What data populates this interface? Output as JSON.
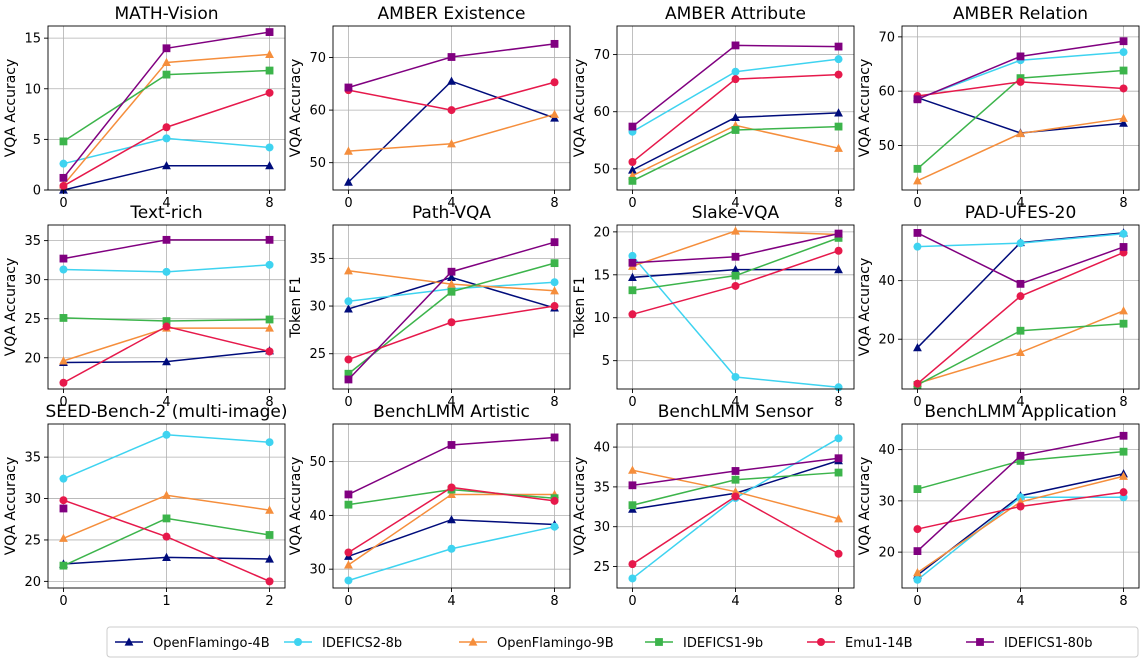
{
  "colors": {
    "OpenFlamingo-4B": "#000c7b",
    "IDEFICS2-8b": "#3ed3f0",
    "OpenFlamingo-9B": "#f58e3c",
    "IDEFICS1-9b": "#3cb44b",
    "Emu1-14B": "#e6194b",
    "IDEFICS1-80b": "#800080"
  },
  "legend": {
    "position": "bottom-center",
    "entries": [
      {
        "name": "OpenFlamingo-4B",
        "marker": "triangle"
      },
      {
        "name": "IDEFICS2-8b",
        "marker": "circle"
      },
      {
        "name": "OpenFlamingo-9B",
        "marker": "triangle"
      },
      {
        "name": "IDEFICS1-9b",
        "marker": "square"
      },
      {
        "name": "Emu1-14B",
        "marker": "circle"
      },
      {
        "name": "IDEFICS1-80b",
        "marker": "square"
      }
    ]
  },
  "chart_data": [
    {
      "type": "line",
      "title": "MATH-Vision",
      "ylabel": "VQA Accuracy",
      "x": [
        0,
        4,
        8
      ],
      "xticks": [
        "0",
        "4",
        "8"
      ],
      "ylim": [
        0,
        16.2
      ],
      "yticks": [
        0,
        5,
        10,
        15
      ],
      "grid": true,
      "series": [
        {
          "name": "OpenFlamingo-4B",
          "values": [
            0,
            2.4,
            2.4
          ]
        },
        {
          "name": "IDEFICS2-8b",
          "values": [
            2.6,
            5.1,
            4.2
          ]
        },
        {
          "name": "OpenFlamingo-9B",
          "values": [
            0.5,
            12.6,
            13.4
          ]
        },
        {
          "name": "IDEFICS1-9b",
          "values": [
            4.8,
            11.4,
            11.8
          ]
        },
        {
          "name": "Emu1-14B",
          "values": [
            0.4,
            6.2,
            9.6
          ]
        },
        {
          "name": "IDEFICS1-80b",
          "values": [
            1.2,
            14.0,
            15.6
          ]
        }
      ]
    },
    {
      "type": "line",
      "title": "AMBER Existence",
      "ylabel": "VQA Accuracy",
      "x": [
        0,
        4,
        8
      ],
      "xticks": [
        "0",
        "4",
        "8"
      ],
      "ylim": [
        44.8,
        76
      ],
      "yticks": [
        50,
        60,
        70
      ],
      "grid": true,
      "series": [
        {
          "name": "OpenFlamingo-4B",
          "values": [
            46.3,
            65.5,
            58.5
          ]
        },
        {
          "name": "OpenFlamingo-9B",
          "values": [
            52.2,
            53.6,
            59.2
          ]
        },
        {
          "name": "Emu1-14B",
          "values": [
            63.8,
            60.0,
            65.3
          ]
        },
        {
          "name": "IDEFICS1-80b",
          "values": [
            64.3,
            70.1,
            72.6
          ]
        }
      ]
    },
    {
      "type": "line",
      "title": "AMBER Attribute",
      "ylabel": "VQA Accuracy",
      "x": [
        0,
        4,
        8
      ],
      "xticks": [
        "0",
        "4",
        "8"
      ],
      "ylim": [
        46.3,
        75
      ],
      "yticks": [
        50,
        60,
        70
      ],
      "grid": true,
      "series": [
        {
          "name": "OpenFlamingo-4B",
          "values": [
            49.8,
            59.0,
            59.8
          ]
        },
        {
          "name": "IDEFICS2-8b",
          "values": [
            56.5,
            67.0,
            69.2
          ]
        },
        {
          "name": "OpenFlamingo-9B",
          "values": [
            48.8,
            57.6,
            53.6
          ]
        },
        {
          "name": "IDEFICS1-9b",
          "values": [
            47.9,
            56.8,
            57.4
          ]
        },
        {
          "name": "Emu1-14B",
          "values": [
            51.2,
            65.7,
            66.5
          ]
        },
        {
          "name": "IDEFICS1-80b",
          "values": [
            57.4,
            71.6,
            71.4
          ]
        }
      ]
    },
    {
      "type": "line",
      "title": "AMBER Relation",
      "ylabel": "VQA Accuracy",
      "x": [
        0,
        4,
        8
      ],
      "xticks": [
        "0",
        "4",
        "8"
      ],
      "ylim": [
        41.8,
        72
      ],
      "yticks": [
        50,
        60,
        70
      ],
      "grid": true,
      "series": [
        {
          "name": "OpenFlamingo-4B",
          "values": [
            58.8,
            52.3,
            54.1
          ]
        },
        {
          "name": "IDEFICS2-8b",
          "values": [
            58.6,
            65.7,
            67.2
          ]
        },
        {
          "name": "OpenFlamingo-9B",
          "values": [
            43.5,
            52.2,
            55.0
          ]
        },
        {
          "name": "IDEFICS1-9b",
          "values": [
            45.7,
            62.4,
            63.8
          ]
        },
        {
          "name": "Emu1-14B",
          "values": [
            59.1,
            61.7,
            60.5
          ]
        },
        {
          "name": "IDEFICS1-80b",
          "values": [
            58.5,
            66.4,
            69.2
          ]
        }
      ]
    },
    {
      "type": "line",
      "title": "Text-rich",
      "ylabel": "VQA Accuracy",
      "x": [
        0,
        4,
        8
      ],
      "xticks": [
        "0",
        "4",
        "8"
      ],
      "ylim": [
        16,
        37
      ],
      "yticks": [
        20,
        25,
        30,
        35
      ],
      "grid": true,
      "series": [
        {
          "name": "OpenFlamingo-4B",
          "values": [
            19.4,
            19.5,
            20.9
          ]
        },
        {
          "name": "IDEFICS2-8b",
          "values": [
            31.3,
            31.0,
            31.9
          ]
        },
        {
          "name": "OpenFlamingo-9B",
          "values": [
            19.6,
            23.8,
            23.8
          ]
        },
        {
          "name": "IDEFICS1-9b",
          "values": [
            25.1,
            24.7,
            24.9
          ]
        },
        {
          "name": "Emu1-14B",
          "values": [
            16.8,
            24.0,
            20.8
          ]
        },
        {
          "name": "IDEFICS1-80b",
          "values": [
            32.7,
            35.1,
            35.1
          ]
        }
      ]
    },
    {
      "type": "line",
      "title": "Path-VQA",
      "ylabel": "Token F1",
      "x": [
        0,
        4,
        8
      ],
      "xticks": [
        "0",
        "4",
        "8"
      ],
      "ylim": [
        21.3,
        38.5
      ],
      "yticks": [
        25,
        30,
        35
      ],
      "grid": true,
      "series": [
        {
          "name": "OpenFlamingo-4B",
          "values": [
            29.7,
            33.0,
            29.8
          ]
        },
        {
          "name": "IDEFICS2-8b",
          "values": [
            30.5,
            31.8,
            32.5
          ]
        },
        {
          "name": "OpenFlamingo-9B",
          "values": [
            33.7,
            32.3,
            31.6
          ]
        },
        {
          "name": "IDEFICS1-9b",
          "values": [
            22.9,
            31.5,
            34.5
          ]
        },
        {
          "name": "Emu1-14B",
          "values": [
            24.4,
            28.3,
            30.0
          ]
        },
        {
          "name": "IDEFICS1-80b",
          "values": [
            22.3,
            33.6,
            36.7
          ]
        }
      ]
    },
    {
      "type": "line",
      "title": "Slake-VQA",
      "ylabel": "Token F1",
      "x": [
        0,
        4,
        8
      ],
      "xticks": [
        "0",
        "4",
        "8"
      ],
      "ylim": [
        1.7,
        20.8
      ],
      "yticks": [
        5,
        10,
        15,
        20
      ],
      "grid": true,
      "series": [
        {
          "name": "OpenFlamingo-4B",
          "values": [
            14.7,
            15.6,
            15.6
          ]
        },
        {
          "name": "IDEFICS2-8b",
          "values": [
            17.2,
            3.1,
            1.9
          ]
        },
        {
          "name": "OpenFlamingo-9B",
          "values": [
            16.0,
            20.1,
            19.7
          ]
        },
        {
          "name": "IDEFICS1-9b",
          "values": [
            13.2,
            14.9,
            19.3
          ]
        },
        {
          "name": "Emu1-14B",
          "values": [
            10.4,
            13.7,
            17.8
          ]
        },
        {
          "name": "IDEFICS1-80b",
          "values": [
            16.4,
            17.1,
            19.8
          ]
        }
      ]
    },
    {
      "type": "line",
      "title": "PAD-UFES-20",
      "ylabel": "VQA Accuracy",
      "x": [
        0,
        4,
        8
      ],
      "xticks": [
        "0",
        "4",
        "8"
      ],
      "ylim": [
        3,
        59
      ],
      "yticks": [
        20,
        40
      ],
      "grid": true,
      "series": [
        {
          "name": "OpenFlamingo-4B",
          "values": [
            17.1,
            53.0,
            56.3
          ]
        },
        {
          "name": "IDEFICS2-8b",
          "values": [
            51.6,
            52.8,
            56.0
          ]
        },
        {
          "name": "OpenFlamingo-9B",
          "values": [
            4.9,
            15.5,
            29.7
          ]
        },
        {
          "name": "IDEFICS1-9b",
          "values": [
            4.4,
            22.9,
            25.3
          ]
        },
        {
          "name": "Emu1-14B",
          "values": [
            4.8,
            34.7,
            49.6
          ]
        },
        {
          "name": "IDEFICS1-80b",
          "values": [
            56.3,
            38.9,
            51.5
          ]
        }
      ]
    },
    {
      "type": "line",
      "title": "SEED-Bench-2 (multi-image)",
      "ylabel": "VQA Accuracy",
      "x": [
        0,
        1,
        2
      ],
      "xticks": [
        "0",
        "1",
        "2"
      ],
      "ylim": [
        19.2,
        39
      ],
      "yticks": [
        20,
        25,
        30,
        35
      ],
      "grid": true,
      "series": [
        {
          "name": "OpenFlamingo-4B",
          "values": [
            22.1,
            22.9,
            22.7
          ]
        },
        {
          "name": "IDEFICS2-8b",
          "values": [
            32.4,
            37.7,
            36.8
          ]
        },
        {
          "name": "OpenFlamingo-9B",
          "values": [
            25.2,
            30.4,
            28.6
          ]
        },
        {
          "name": "IDEFICS1-9b",
          "values": [
            21.9,
            27.6,
            25.6
          ]
        },
        {
          "name": "Emu1-14B",
          "values": [
            29.8,
            25.4,
            20.0
          ]
        },
        {
          "name": "IDEFICS1-80b",
          "values": [
            28.8,
            null,
            null
          ]
        }
      ]
    },
    {
      "type": "line",
      "title": "BenchLMM Artistic",
      "ylabel": "VQA Accuracy",
      "x": [
        0,
        4,
        8
      ],
      "xticks": [
        "0",
        "4",
        "8"
      ],
      "ylim": [
        26.5,
        57
      ],
      "yticks": [
        30,
        40,
        50
      ],
      "grid": true,
      "series": [
        {
          "name": "OpenFlamingo-4B",
          "values": [
            32.4,
            39.2,
            38.3
          ]
        },
        {
          "name": "IDEFICS2-8b",
          "values": [
            27.9,
            33.8,
            37.9
          ]
        },
        {
          "name": "OpenFlamingo-9B",
          "values": [
            30.8,
            43.9,
            43.9
          ]
        },
        {
          "name": "IDEFICS1-9b",
          "values": [
            42.0,
            44.8,
            43.2
          ]
        },
        {
          "name": "Emu1-14B",
          "values": [
            33.1,
            45.2,
            42.7
          ]
        },
        {
          "name": "IDEFICS1-80b",
          "values": [
            43.9,
            53.1,
            54.5
          ]
        }
      ]
    },
    {
      "type": "line",
      "title": "BenchLMM Sensor",
      "ylabel": "VQA Accuracy",
      "x": [
        0,
        4,
        8
      ],
      "xticks": [
        "0",
        "4",
        "8"
      ],
      "ylim": [
        22.3,
        42.9
      ],
      "yticks": [
        25,
        30,
        35,
        40
      ],
      "grid": true,
      "series": [
        {
          "name": "OpenFlamingo-4B",
          "values": [
            32.2,
            34.2,
            38.3
          ]
        },
        {
          "name": "IDEFICS2-8b",
          "values": [
            23.5,
            33.6,
            41.1
          ]
        },
        {
          "name": "OpenFlamingo-9B",
          "values": [
            37.1,
            34.4,
            31.0
          ]
        },
        {
          "name": "IDEFICS1-9b",
          "values": [
            32.7,
            35.9,
            36.8
          ]
        },
        {
          "name": "Emu1-14B",
          "values": [
            25.3,
            33.8,
            26.6
          ]
        },
        {
          "name": "IDEFICS1-80b",
          "values": [
            35.2,
            37.0,
            38.6
          ]
        }
      ]
    },
    {
      "type": "line",
      "title": "BenchLMM Application",
      "ylabel": "VQA Accuracy",
      "x": [
        0,
        4,
        8
      ],
      "xticks": [
        "0",
        "4",
        "8"
      ],
      "ylim": [
        13,
        45
      ],
      "yticks": [
        20,
        30,
        40
      ],
      "grid": true,
      "series": [
        {
          "name": "OpenFlamingo-4B",
          "values": [
            15.5,
            31.0,
            35.3
          ]
        },
        {
          "name": "IDEFICS2-8b",
          "values": [
            14.6,
            30.7,
            30.7
          ]
        },
        {
          "name": "OpenFlamingo-9B",
          "values": [
            16.0,
            29.8,
            34.8
          ]
        },
        {
          "name": "IDEFICS1-9b",
          "values": [
            32.3,
            37.8,
            39.6
          ]
        },
        {
          "name": "Emu1-14B",
          "values": [
            24.5,
            28.9,
            31.7
          ]
        },
        {
          "name": "IDEFICS1-80b",
          "values": [
            20.2,
            38.8,
            42.7
          ]
        }
      ]
    }
  ]
}
